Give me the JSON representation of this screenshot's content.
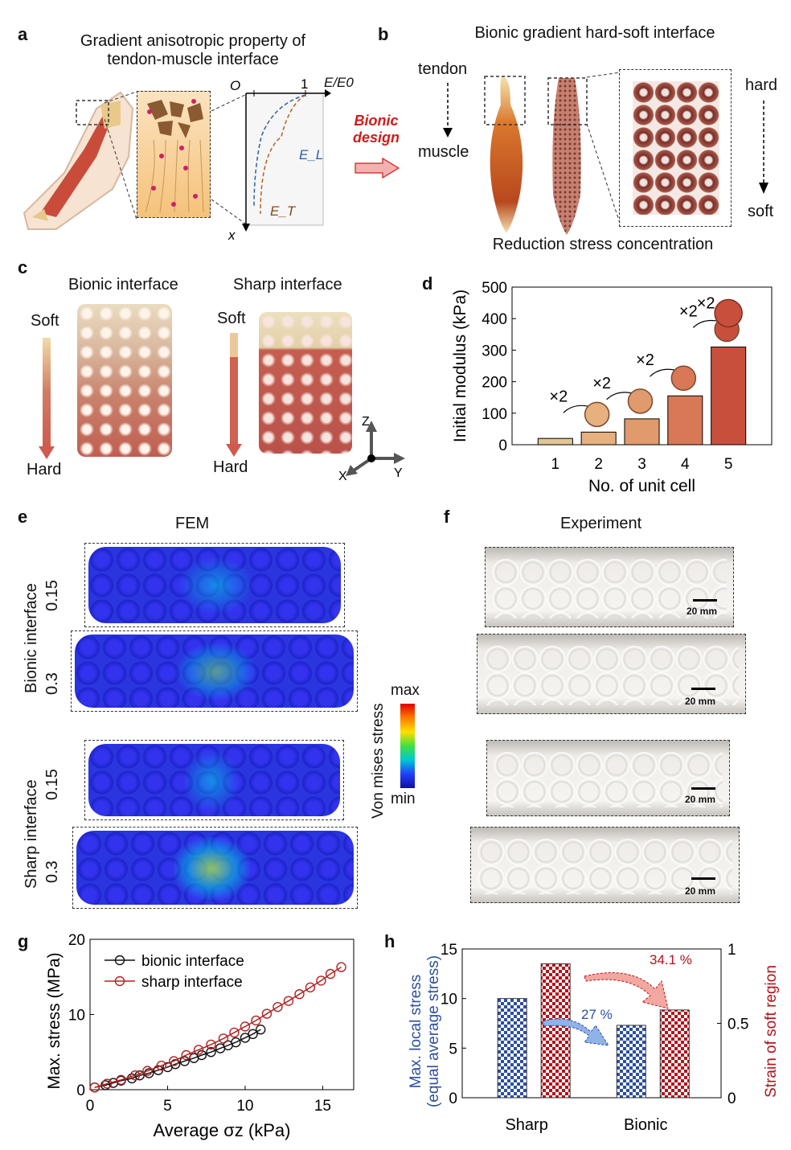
{
  "panels": {
    "a": {
      "letter": "a",
      "title_line1": "Gradient anisotropic property of",
      "title_line2": "tendon-muscle interface",
      "axis_origin": "O",
      "axis_one": "1",
      "axis_x": "E/E0",
      "axis_y": "x",
      "curve_L": "E_L",
      "curve_T": "E_T",
      "arrow_text_line1": "Bionic",
      "arrow_text_line2": "design"
    },
    "b": {
      "letter": "b",
      "title": "Bionic gradient hard-soft interface",
      "label_tendon": "tendon",
      "label_muscle": "muscle",
      "label_hard": "hard",
      "label_soft": "soft",
      "caption": "Reduction stress concentration"
    },
    "c": {
      "letter": "c",
      "bionic_title": "Bionic interface",
      "sharp_title": "Sharp interface",
      "soft": "Soft",
      "hard": "Hard",
      "axis_z": "Z",
      "axis_x": "X",
      "axis_y": "Y"
    },
    "d": {
      "letter": "d"
    },
    "e": {
      "letter": "e",
      "title": "FEM",
      "row_bionic": "Bionic interface",
      "row_sharp": "Sharp interface",
      "strain_015": "0.15",
      "strain_03": "0.3",
      "colorbar_title": "Von mises stress",
      "colorbar_max": "max",
      "colorbar_min": "min"
    },
    "f": {
      "letter": "f",
      "title": "Experiment",
      "scale_label": "20 mm"
    },
    "g": {
      "letter": "g"
    },
    "h": {
      "letter": "h"
    }
  },
  "chart_data": [
    {
      "id": "d",
      "type": "bar",
      "categories": [
        "1",
        "2",
        "3",
        "4",
        "5"
      ],
      "values": [
        20,
        40,
        82,
        155,
        310
      ],
      "colors": [
        "#e3c596",
        "#e6b07f",
        "#e19a6c",
        "#d97856",
        "#c94f3d"
      ],
      "xlabel": "No. of unit cell",
      "ylabel": "Initial modulus (kPa)",
      "ylim": [
        0,
        500
      ],
      "yticks": [
        0,
        100,
        200,
        300,
        400,
        500
      ],
      "annotations": [
        "×2",
        "×2",
        "×2",
        "×2"
      ]
    },
    {
      "id": "g",
      "type": "line",
      "xlabel": "Average σz (kPa)",
      "ylabel": "Max. stress (MPa)",
      "xlim": [
        0,
        17
      ],
      "ylim": [
        0,
        20
      ],
      "xticks": [
        0,
        5,
        10,
        15
      ],
      "yticks": [
        0,
        10,
        20
      ],
      "legend_position": "top-left",
      "series": [
        {
          "name": "bionic interface",
          "color": "#111111",
          "x": [
            0.3,
            1,
            1.5,
            2,
            2.7,
            3.2,
            3.8,
            4.4,
            5.0,
            5.5,
            6.1,
            6.7,
            7.2,
            7.8,
            8.4,
            8.9,
            9.4,
            10.0,
            10.5,
            11.0
          ],
          "y": [
            0.3,
            0.6,
            0.9,
            1.2,
            1.5,
            1.9,
            2.2,
            2.6,
            3.0,
            3.4,
            3.8,
            4.2,
            4.6,
            5.0,
            5.5,
            5.9,
            6.3,
            6.9,
            7.4,
            8.0
          ]
        },
        {
          "name": "sharp interface",
          "color": "#b22222",
          "x": [
            0.3,
            1.1,
            2,
            2.9,
            3.7,
            4.6,
            5.4,
            6.2,
            7.0,
            7.8,
            8.6,
            9.3,
            10.0,
            10.7,
            11.4,
            12.1,
            12.8,
            13.5,
            14.2,
            14.9,
            15.5,
            16.2
          ],
          "y": [
            0.3,
            0.8,
            1.3,
            1.9,
            2.5,
            3.2,
            3.8,
            4.6,
            5.3,
            6.0,
            6.8,
            7.6,
            8.4,
            9.2,
            10.1,
            11.0,
            11.8,
            12.7,
            13.6,
            14.5,
            15.4,
            16.3
          ]
        }
      ]
    },
    {
      "id": "h",
      "type": "bar",
      "categories": [
        "Sharp",
        "Bionic"
      ],
      "ylabel_left_line1": "Max. local stress",
      "ylabel_left_line2": "(equal average stress)",
      "ylabel_right": "Strain of soft region",
      "ylim_left": [
        0,
        15
      ],
      "ylim_right": [
        0,
        1
      ],
      "yticks_left": [
        0,
        5,
        10,
        15
      ],
      "yticks_right": [
        "0",
        "0.5",
        "1"
      ],
      "series": [
        {
          "name": "Max. local stress",
          "axis": "left",
          "color": "#2b4fa0",
          "values": [
            10.0,
            7.3
          ]
        },
        {
          "name": "Strain of soft region",
          "axis": "right",
          "color": "#b5121b",
          "values": [
            0.9,
            0.59
          ]
        }
      ],
      "annotations": [
        "27 %",
        "34.1 %"
      ]
    }
  ]
}
